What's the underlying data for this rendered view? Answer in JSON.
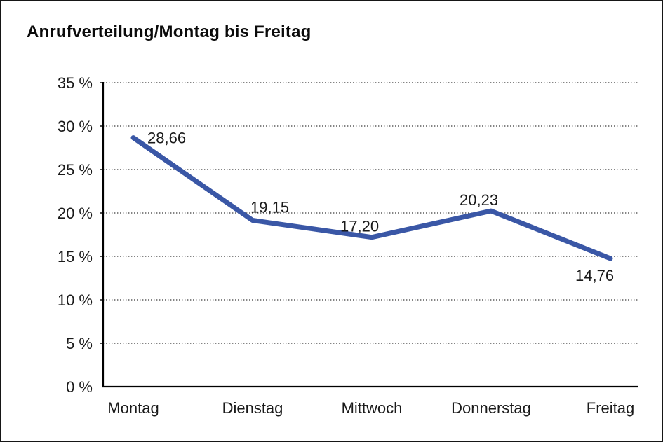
{
  "title": "Anrufverteilung/Montag bis Freitag",
  "chart_data": {
    "type": "line",
    "title": "Anrufverteilung/Montag bis Freitag",
    "categories": [
      "Montag",
      "Dienstag",
      "Mittwoch",
      "Donnerstag",
      "Freitag"
    ],
    "series": [
      {
        "name": "Anrufverteilung",
        "values": [
          28.66,
          19.15,
          17.2,
          20.23,
          14.76
        ]
      }
    ],
    "data_labels": [
      "28,66",
      "19,15",
      "17,20",
      "20,23",
      "14,76"
    ],
    "y_axis": {
      "min": 0,
      "max": 35,
      "tick_step": 5,
      "tick_labels": [
        "0 %",
        "5 %",
        "10 %",
        "15 %",
        "20 %",
        "25 %",
        "30 %",
        "35 %"
      ]
    },
    "xlabel": "",
    "ylabel": "",
    "grid": "horizontal-dotted",
    "legend": "none",
    "colors": {
      "line": "#3A57A6",
      "text": "#1a1a1a",
      "gridline": "#3a3a3a",
      "axis": "#000000"
    }
  }
}
